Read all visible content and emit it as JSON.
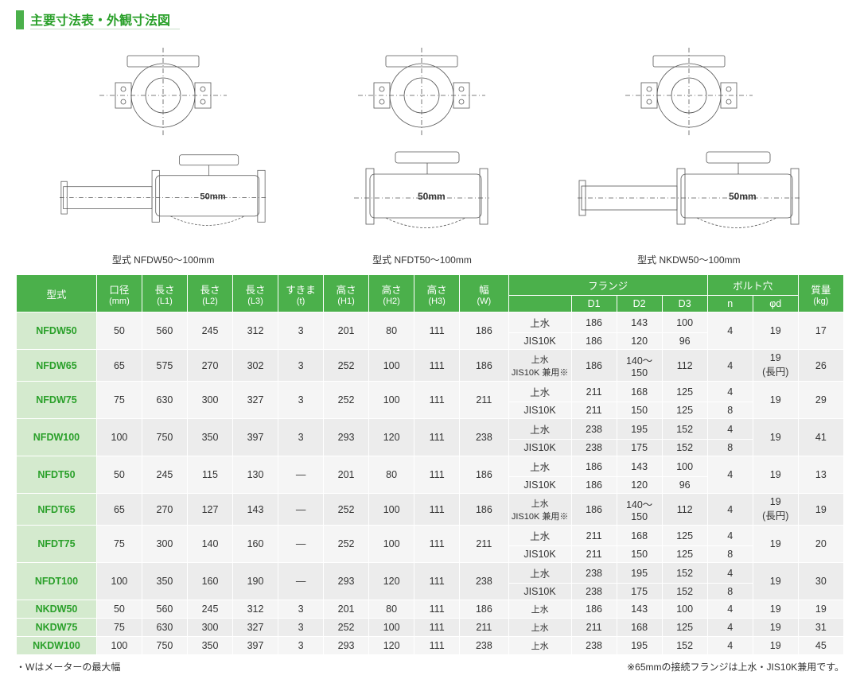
{
  "title": "主要寸法表・外観寸法図",
  "diagrams": [
    {
      "caption": "型式 NFDW50～100mm",
      "top_w": 160,
      "side_w": 260,
      "side_h": 130,
      "label": "50mm"
    },
    {
      "caption": "型式 NFDT50～100mm",
      "top_w": 160,
      "side_w": 170,
      "side_h": 130,
      "label": "50mm"
    },
    {
      "caption": "型式 NKDW50～100mm",
      "top_w": 160,
      "side_w": 280,
      "side_h": 130,
      "label": "50mm"
    }
  ],
  "headers": {
    "model": "型式",
    "bore": "口径",
    "bore_sub": "(mm)",
    "L1": "長さ",
    "L1_sub": "(L1)",
    "L2": "長さ",
    "L2_sub": "(L2)",
    "L3": "長さ",
    "L3_sub": "(L3)",
    "t": "すきま",
    "t_sub": "(t)",
    "H1": "高さ",
    "H1_sub": "(H1)",
    "H2": "高さ",
    "H2_sub": "(H2)",
    "H3": "高さ",
    "H3_sub": "(H3)",
    "W": "幅",
    "W_sub": "(W)",
    "flange": "フランジ",
    "D1": "D1",
    "D2": "D2",
    "D3": "D3",
    "bolt": "ボルト穴",
    "n": "n",
    "phid": "φd",
    "mass": "質量",
    "mass_sub": "(kg)"
  },
  "rows": [
    {
      "model": "NFDW50",
      "bore": "50",
      "L1": "560",
      "L2": "245",
      "L3": "312",
      "t": "3",
      "H1": "201",
      "H2": "80",
      "H3": "111",
      "W": "186",
      "flange": [
        {
          "name": "上水",
          "D1": "186",
          "D2": "143",
          "D3": "100"
        },
        {
          "name": "JIS10K",
          "D1": "186",
          "D2": "120",
          "D3": "96"
        }
      ],
      "n": "4",
      "phid": "19",
      "mass": "17"
    },
    {
      "model": "NFDW65",
      "bore": "65",
      "L1": "575",
      "L2": "270",
      "L3": "302",
      "t": "3",
      "H1": "252",
      "H2": "100",
      "H3": "111",
      "W": "186",
      "flange": [
        {
          "name": "上水\nJIS10K 兼用※",
          "D1": "186",
          "D2": "140～\n150",
          "D3": "112"
        }
      ],
      "n": "4",
      "phid": "19\n(長円)",
      "mass": "26"
    },
    {
      "model": "NFDW75",
      "bore": "75",
      "L1": "630",
      "L2": "300",
      "L3": "327",
      "t": "3",
      "H1": "252",
      "H2": "100",
      "H3": "111",
      "W": "211",
      "flange": [
        {
          "name": "上水",
          "D1": "211",
          "D2": "168",
          "D3": "125",
          "n": "4"
        },
        {
          "name": "JIS10K",
          "D1": "211",
          "D2": "150",
          "D3": "125",
          "n": "8"
        }
      ],
      "phid": "19",
      "mass": "29"
    },
    {
      "model": "NFDW100",
      "bore": "100",
      "L1": "750",
      "L2": "350",
      "L3": "397",
      "t": "3",
      "H1": "293",
      "H2": "120",
      "H3": "111",
      "W": "238",
      "flange": [
        {
          "name": "上水",
          "D1": "238",
          "D2": "195",
          "D3": "152",
          "n": "4"
        },
        {
          "name": "JIS10K",
          "D1": "238",
          "D2": "175",
          "D3": "152",
          "n": "8"
        }
      ],
      "phid": "19",
      "mass": "41"
    },
    {
      "model": "NFDT50",
      "bore": "50",
      "L1": "245",
      "L2": "115",
      "L3": "130",
      "t": "―",
      "H1": "201",
      "H2": "80",
      "H3": "111",
      "W": "186",
      "flange": [
        {
          "name": "上水",
          "D1": "186",
          "D2": "143",
          "D3": "100"
        },
        {
          "name": "JIS10K",
          "D1": "186",
          "D2": "120",
          "D3": "96"
        }
      ],
      "n": "4",
      "phid": "19",
      "mass": "13"
    },
    {
      "model": "NFDT65",
      "bore": "65",
      "L1": "270",
      "L2": "127",
      "L3": "143",
      "t": "―",
      "H1": "252",
      "H2": "100",
      "H3": "111",
      "W": "186",
      "flange": [
        {
          "name": "上水\nJIS10K 兼用※",
          "D1": "186",
          "D2": "140～\n150",
          "D3": "112"
        }
      ],
      "n": "4",
      "phid": "19\n(長円)",
      "mass": "19"
    },
    {
      "model": "NFDT75",
      "bore": "75",
      "L1": "300",
      "L2": "140",
      "L3": "160",
      "t": "―",
      "H1": "252",
      "H2": "100",
      "H3": "111",
      "W": "211",
      "flange": [
        {
          "name": "上水",
          "D1": "211",
          "D2": "168",
          "D3": "125",
          "n": "4"
        },
        {
          "name": "JIS10K",
          "D1": "211",
          "D2": "150",
          "D3": "125",
          "n": "8"
        }
      ],
      "phid": "19",
      "mass": "20"
    },
    {
      "model": "NFDT100",
      "bore": "100",
      "L1": "350",
      "L2": "160",
      "L3": "190",
      "t": "―",
      "H1": "293",
      "H2": "120",
      "H3": "111",
      "W": "238",
      "flange": [
        {
          "name": "上水",
          "D1": "238",
          "D2": "195",
          "D3": "152",
          "n": "4"
        },
        {
          "name": "JIS10K",
          "D1": "238",
          "D2": "175",
          "D3": "152",
          "n": "8"
        }
      ],
      "phid": "19",
      "mass": "30"
    },
    {
      "model": "NKDW50",
      "bore": "50",
      "L1": "560",
      "L2": "245",
      "L3": "312",
      "t": "3",
      "H1": "201",
      "H2": "80",
      "H3": "111",
      "W": "186",
      "flange": [
        {
          "name": "上水",
          "D1": "186",
          "D2": "143",
          "D3": "100",
          "n": "4"
        }
      ],
      "phid": "19",
      "mass": "19",
      "single": true
    },
    {
      "model": "NKDW75",
      "bore": "75",
      "L1": "630",
      "L2": "300",
      "L3": "327",
      "t": "3",
      "H1": "252",
      "H2": "100",
      "H3": "111",
      "W": "211",
      "flange": [
        {
          "name": "上水",
          "D1": "211",
          "D2": "168",
          "D3": "125",
          "n": "4"
        }
      ],
      "phid": "19",
      "mass": "31",
      "single": true
    },
    {
      "model": "NKDW100",
      "bore": "100",
      "L1": "750",
      "L2": "350",
      "L3": "397",
      "t": "3",
      "H1": "293",
      "H2": "120",
      "H3": "111",
      "W": "238",
      "flange": [
        {
          "name": "上水",
          "D1": "238",
          "D2": "195",
          "D3": "152",
          "n": "4"
        }
      ],
      "phid": "19",
      "mass": "45",
      "single": true
    }
  ],
  "note_left": "・Wはメーターの最大幅",
  "note_right": "※65mmの接続フランジは上水・JIS10K兼用です。",
  "colors": {
    "green": "#4bb04b",
    "pale": "#d4eace",
    "zebra_a": "#f5f5f5",
    "zebra_b": "#ececec"
  }
}
